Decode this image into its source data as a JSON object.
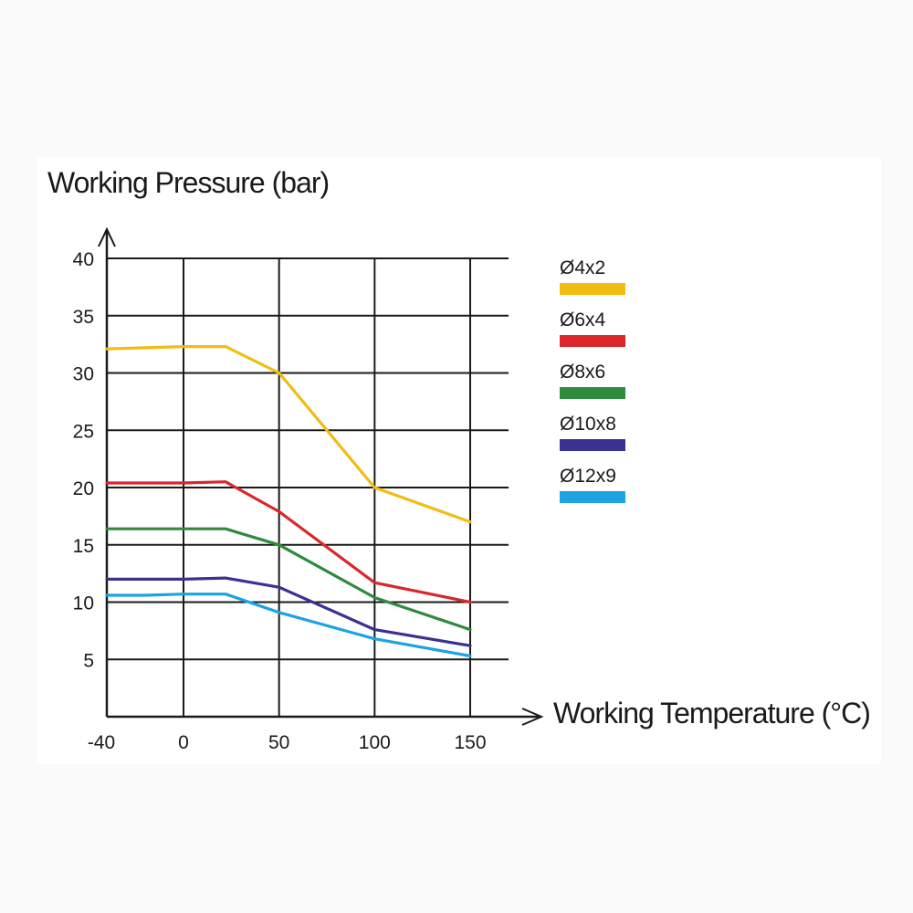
{
  "chart_data": {
    "type": "line",
    "title": "",
    "ylabel": "Working Pressure (bar)",
    "xlabel": "Working Temperature (°C)",
    "x_ticks": [
      -40,
      0,
      50,
      100,
      150
    ],
    "y_ticks": [
      5,
      10,
      15,
      20,
      25,
      30,
      35,
      40
    ],
    "xlim": [
      -40,
      150
    ],
    "ylim": [
      0,
      40
    ],
    "grid": true,
    "legend_position": "right",
    "series": [
      {
        "name": "Ø4x2",
        "color": "#f2bd10",
        "points": [
          [
            -40,
            32.1
          ],
          [
            -20,
            32.2
          ],
          [
            0,
            32.3
          ],
          [
            22,
            32.3
          ],
          [
            50,
            30.0
          ],
          [
            100,
            20.0
          ],
          [
            150,
            17.0
          ]
        ]
      },
      {
        "name": "Ø6x4",
        "color": "#d9272c",
        "points": [
          [
            -40,
            20.4
          ],
          [
            -20,
            20.4
          ],
          [
            0,
            20.4
          ],
          [
            22,
            20.5
          ],
          [
            50,
            17.9
          ],
          [
            100,
            11.7
          ],
          [
            150,
            10.0
          ]
        ]
      },
      {
        "name": "Ø8x6",
        "color": "#2e8b3d",
        "points": [
          [
            -40,
            16.4
          ],
          [
            -20,
            16.4
          ],
          [
            0,
            16.4
          ],
          [
            22,
            16.4
          ],
          [
            50,
            15.0
          ],
          [
            100,
            10.4
          ],
          [
            150,
            7.6
          ]
        ]
      },
      {
        "name": "Ø10x8",
        "color": "#3a3190",
        "points": [
          [
            -40,
            12.0
          ],
          [
            -20,
            12.0
          ],
          [
            0,
            12.0
          ],
          [
            22,
            12.1
          ],
          [
            50,
            11.3
          ],
          [
            100,
            7.6
          ],
          [
            150,
            6.2
          ]
        ]
      },
      {
        "name": "Ø12x9",
        "color": "#1ba3e2",
        "points": [
          [
            -40,
            10.6
          ],
          [
            -20,
            10.6
          ],
          [
            0,
            10.7
          ],
          [
            22,
            10.7
          ],
          [
            50,
            9.1
          ],
          [
            100,
            6.8
          ],
          [
            150,
            5.3
          ]
        ]
      }
    ]
  }
}
